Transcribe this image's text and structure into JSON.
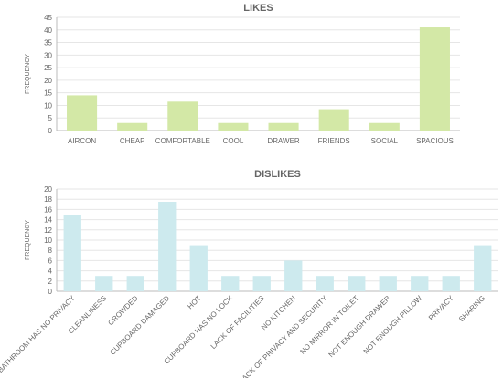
{
  "chart_data": [
    {
      "type": "bar",
      "title": "LIKES",
      "xlabel": "",
      "ylabel": "FREQUENCY",
      "ylim": [
        0,
        45
      ],
      "yticks": [
        0,
        5,
        10,
        15,
        20,
        25,
        30,
        35,
        40,
        45
      ],
      "grid": true,
      "color": "#d3e8a6",
      "categories": [
        "AIRCON",
        "CHEAP",
        "COMFORTABLE",
        "COOL",
        "DRAWER",
        "FRIENDS",
        "SOCIAL",
        "SPACIOUS"
      ],
      "values": [
        14,
        3,
        11.5,
        3,
        3,
        8.5,
        3,
        41
      ]
    },
    {
      "type": "bar",
      "title": "DISLIKES",
      "xlabel": "",
      "ylabel": "FREQUENCY",
      "ylim": [
        0,
        20
      ],
      "yticks": [
        0,
        2,
        4,
        6,
        8,
        10,
        12,
        14,
        16,
        18,
        20
      ],
      "grid": true,
      "color": "#cdeaee",
      "categories": [
        "BATHROOM HAS NO PRIVACY",
        "CLEANLINESS",
        "CROWDED",
        "CUPBOARD DAMAGED",
        "HOT",
        "CUPBOARD HAS NO LOCK",
        "LACK OF FACILITIES",
        "NO KITCHEN",
        "LACK OF PRIVACY AND SECURITY",
        "NO MIRROR IN TOILET",
        "NOT ENOUGH DRAWER",
        "NOT ENOUGH PILLOW",
        "PRIVACY",
        "SHARING"
      ],
      "values": [
        15,
        3,
        3,
        17.5,
        9,
        3,
        3,
        6,
        3,
        3,
        3,
        3,
        3,
        9
      ]
    }
  ]
}
